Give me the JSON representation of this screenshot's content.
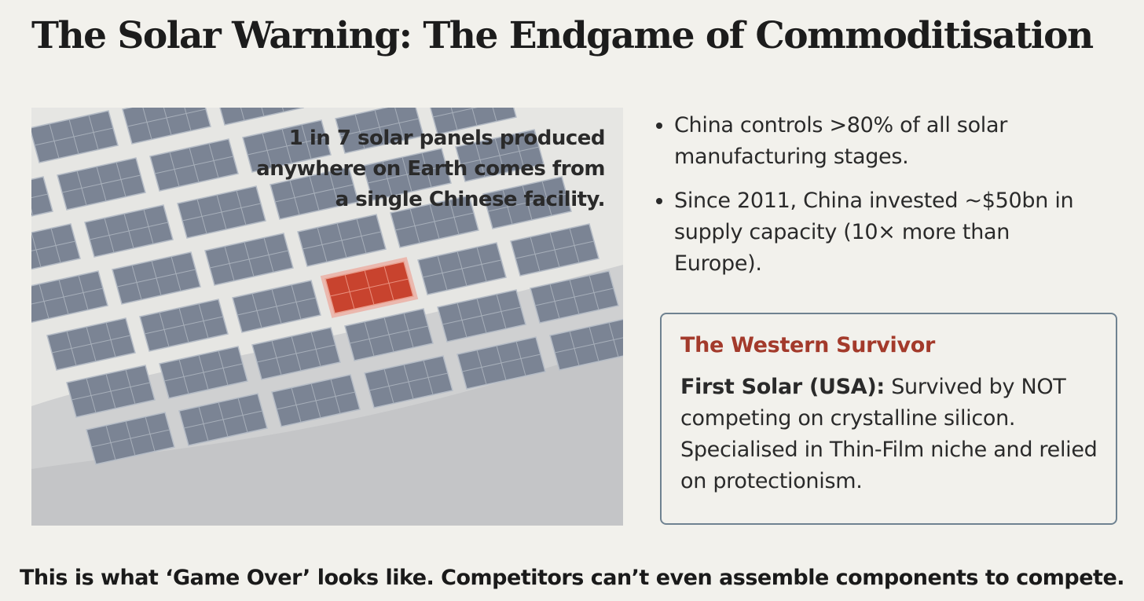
{
  "title": "The Solar Warning: The Endgame of Commoditisation",
  "illustration": {
    "caption": [
      "1 in 7 solar panels produced",
      "anywhere on Earth comes from",
      "a single Chinese facility."
    ]
  },
  "bullets": [
    "China controls >80% of all solar manufacturing stages.",
    "Since 2011, China invested ~$50bn in supply capacity (10× more than Europe)."
  ],
  "callout": {
    "title": "The Western Survivor",
    "lead": "First Solar (USA):",
    "body": "Survived by NOT competing on crystalline silicon. Specialised in Thin-Film niche and relied on protectionism."
  },
  "footer": "This is what ‘Game Over’ looks like. Competitors can’t even assemble components to compete."
}
